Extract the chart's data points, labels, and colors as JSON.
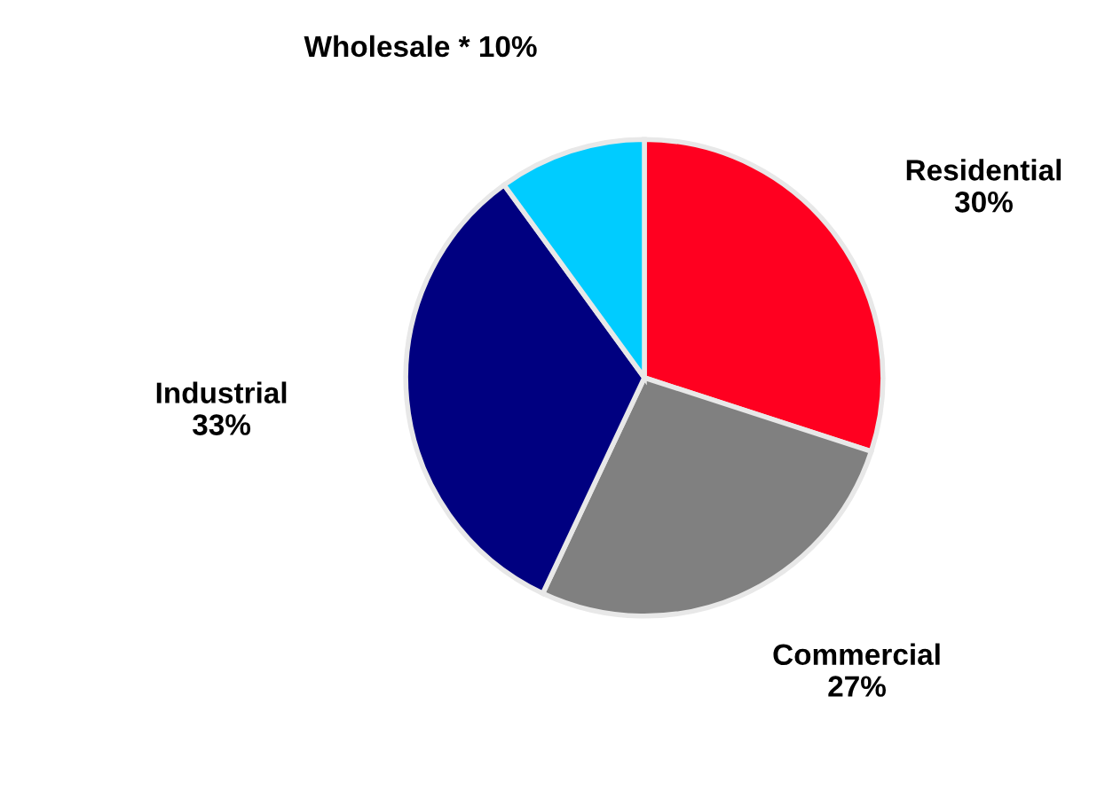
{
  "chart_data": {
    "type": "pie",
    "categories": [
      "Residential",
      "Commercial",
      "Industrial",
      "Wholesale *"
    ],
    "values": [
      30,
      27,
      33,
      10
    ],
    "colors": [
      "#ff0020",
      "#808080",
      "#000080",
      "#00ccff"
    ],
    "value_labels": [
      "30%",
      "27%",
      "33%",
      "10%"
    ]
  }
}
